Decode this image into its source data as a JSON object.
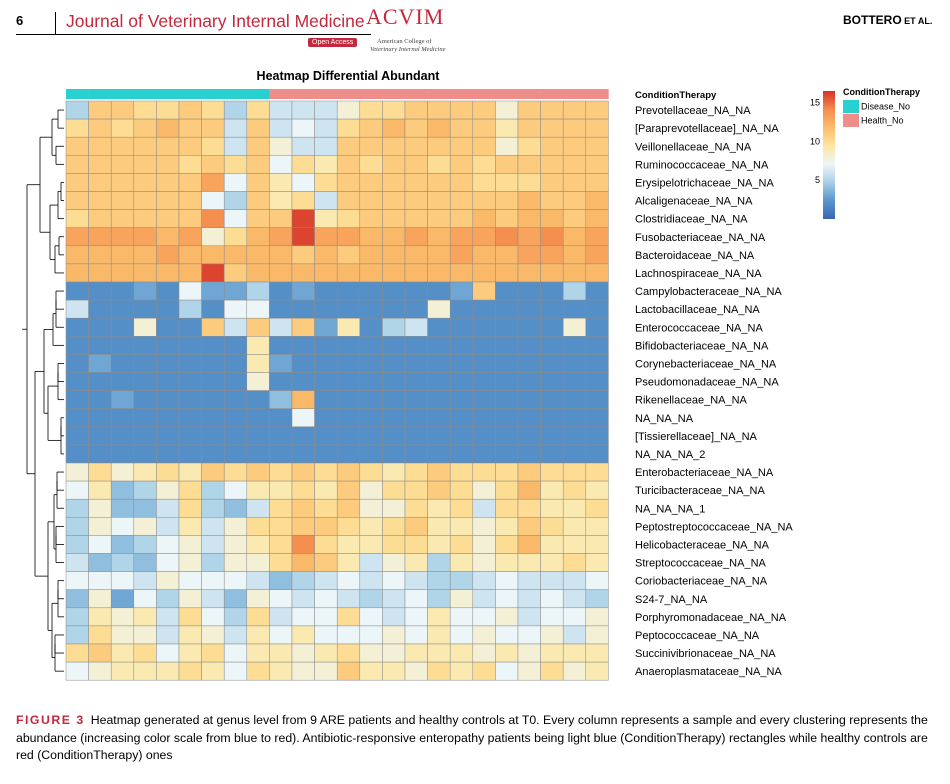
{
  "page": {
    "number": "6",
    "journal": "Journal of Veterinary Internal Medicine",
    "logo": "ACVIM",
    "open_access": "Open Access",
    "college_line1": "American College of",
    "college_line2": "Veterinary Internal Medicine",
    "running_head_author": "BOTTERO",
    "running_head_suffix": " ET AL."
  },
  "chart_data": {
    "type": "heatmap",
    "title": "Heatmap Differential Abundant",
    "annotation_label": "ConditionTherapy",
    "legend": {
      "title": "ConditionTherapy",
      "groups": [
        {
          "label": "Disease_No",
          "color": "#29d0d0"
        },
        {
          "label": "Health_No",
          "color": "#ef8d8a"
        }
      ]
    },
    "colorbar": {
      "ticks": [
        15,
        10,
        5
      ],
      "min": 0,
      "max": 16.5,
      "colors": [
        "#3a65b2",
        "#5a96cc",
        "#a7cfe6",
        "#eef6f9",
        "#fde6a0",
        "#fbbd6c",
        "#f58c4e",
        "#d73027"
      ]
    },
    "columns": [
      "Disease_No",
      "Disease_No",
      "Disease_No",
      "Disease_No",
      "Disease_No",
      "Disease_No",
      "Disease_No",
      "Disease_No",
      "Disease_No",
      "Health_No",
      "Health_No",
      "Health_No",
      "Health_No",
      "Health_No",
      "Health_No",
      "Health_No",
      "Health_No",
      "Health_No",
      "Health_No",
      "Health_No",
      "Health_No",
      "Health_No",
      "Health_No",
      "Health_No"
    ],
    "rows": [
      "Prevotellaceae_NA_NA",
      "[Paraprevotellaceae]_NA_NA",
      "Veillonellaceae_NA_NA",
      "Ruminococcaceae_NA_NA",
      "Erysipelotrichaceae_NA_NA",
      "Alcaligenaceae_NA_NA",
      "Clostridiaceae_NA_NA",
      "Fusobacteriaceae_NA_NA",
      "Bacteroidaceae_NA_NA",
      "Lachnospiraceae_NA_NA",
      "Campylobacteraceae_NA_NA",
      "Lactobacillaceae_NA_NA",
      "Enterococcaceae_NA_NA",
      "Bifidobacteriaceae_NA_NA",
      "Corynebacteriaceae_NA_NA",
      "Pseudomonadaceae_NA_NA",
      "Rikenellaceae_NA_NA",
      "NA_NA_NA",
      "[Tissierellaceae]_NA_NA",
      "NA_NA_NA_2",
      "Enterobacteriaceae_NA_NA",
      "Turicibacteraceae_NA_NA",
      "NA_NA_NA_1",
      "Peptostreptococcaceae_NA_NA",
      "Helicobacteraceae_NA_NA",
      "Streptococcaceae_NA_NA",
      "Coriobacteriaceae_NA_NA",
      "S24-7_NA_NA",
      "Porphyromonadaceae_NA_NA",
      "Peptococcaceae_NA_NA",
      "Succinivibrionaceae_NA_NA",
      "Anaeroplasmataceae_NA_NA"
    ],
    "values": [
      [
        5,
        11,
        11,
        10,
        10,
        11,
        10,
        5,
        10,
        6,
        6,
        6,
        8,
        10,
        10,
        11,
        11,
        11,
        11,
        8,
        11,
        11,
        11,
        11
      ],
      [
        10,
        11,
        10,
        11,
        12,
        11,
        11,
        6,
        11,
        6,
        7,
        6,
        10,
        11,
        12,
        11,
        12,
        11,
        11,
        9,
        11,
        11,
        11,
        11
      ],
      [
        11,
        11,
        11,
        11,
        11,
        11,
        10,
        6,
        11,
        8,
        6,
        6,
        11,
        11,
        11,
        11,
        11,
        11,
        11,
        8,
        10,
        11,
        11,
        11
      ],
      [
        11,
        11,
        11,
        11,
        11,
        10,
        11,
        10,
        11,
        7,
        10,
        9,
        11,
        10,
        11,
        11,
        10,
        11,
        10,
        11,
        11,
        11,
        11,
        11
      ],
      [
        11,
        11,
        11,
        11,
        11,
        11,
        13,
        7,
        11,
        9,
        7,
        10,
        11,
        11,
        11,
        11,
        11,
        11,
        10,
        10,
        10,
        11,
        11,
        11
      ],
      [
        11,
        11,
        11,
        11,
        11,
        11,
        7,
        5,
        11,
        9,
        10,
        6,
        11,
        11,
        11,
        11,
        11,
        11,
        11,
        11,
        12,
        11,
        11,
        12
      ],
      [
        10,
        11,
        11,
        11,
        11,
        11,
        14,
        7,
        11,
        11,
        16,
        9,
        10,
        11,
        11,
        11,
        11,
        11,
        12,
        11,
        12,
        12,
        11,
        12
      ],
      [
        13,
        13,
        13,
        13,
        12,
        13,
        8,
        10,
        12,
        13,
        16,
        13,
        13,
        12,
        12,
        13,
        12,
        13,
        13,
        14,
        13,
        14,
        12,
        13
      ],
      [
        12,
        12,
        12,
        12,
        13,
        12,
        12,
        12,
        12,
        12,
        11,
        12,
        11,
        12,
        12,
        12,
        12,
        13,
        12,
        12,
        13,
        13,
        12,
        13
      ],
      [
        12,
        12,
        12,
        12,
        12,
        12,
        16,
        11,
        12,
        12,
        12,
        12,
        12,
        12,
        12,
        12,
        12,
        12,
        12,
        12,
        12,
        12,
        12,
        12
      ],
      [
        2,
        2,
        2,
        3,
        2,
        7,
        3,
        3,
        5,
        2,
        3,
        2,
        2,
        2,
        2,
        2,
        2,
        3,
        11,
        2,
        2,
        2,
        5,
        2
      ],
      [
        6,
        2,
        2,
        2,
        2,
        5,
        2,
        7,
        7,
        2,
        2,
        2,
        2,
        2,
        2,
        2,
        8,
        2,
        2,
        2,
        2,
        2,
        2,
        2
      ],
      [
        2,
        2,
        2,
        8,
        2,
        2,
        11,
        6,
        11,
        6,
        11,
        3,
        9,
        2,
        5,
        6,
        2,
        2,
        2,
        2,
        2,
        2,
        8,
        2
      ],
      [
        2,
        2,
        2,
        2,
        2,
        2,
        2,
        2,
        9,
        2,
        2,
        2,
        2,
        2,
        2,
        2,
        2,
        2,
        2,
        2,
        2,
        2,
        2,
        2
      ],
      [
        2,
        3,
        2,
        2,
        2,
        2,
        2,
        2,
        9,
        3,
        2,
        2,
        2,
        2,
        2,
        2,
        2,
        2,
        2,
        2,
        2,
        2,
        2,
        2
      ],
      [
        2,
        2,
        2,
        2,
        2,
        2,
        2,
        2,
        8,
        2,
        2,
        2,
        2,
        2,
        2,
        2,
        2,
        2,
        2,
        2,
        2,
        2,
        2,
        2
      ],
      [
        2,
        2,
        3,
        2,
        2,
        2,
        2,
        2,
        2,
        4,
        12,
        2,
        2,
        2,
        2,
        2,
        2,
        2,
        2,
        2,
        2,
        2,
        2,
        2
      ],
      [
        2,
        2,
        2,
        2,
        2,
        2,
        2,
        2,
        2,
        2,
        7,
        2,
        2,
        2,
        2,
        2,
        2,
        2,
        2,
        2,
        2,
        2,
        2,
        2
      ],
      [
        2,
        2,
        2,
        2,
        2,
        2,
        2,
        2,
        2,
        2,
        2,
        2,
        2,
        2,
        2,
        2,
        2,
        2,
        2,
        2,
        2,
        2,
        2,
        2
      ],
      [
        2,
        2,
        2,
        2,
        2,
        2,
        2,
        2,
        2,
        2,
        2,
        2,
        2,
        2,
        2,
        2,
        2,
        2,
        2,
        2,
        2,
        2,
        2,
        2
      ],
      [
        8,
        10,
        8,
        9,
        10,
        9,
        11,
        10,
        11,
        10,
        11,
        10,
        11,
        10,
        9,
        10,
        11,
        10,
        10,
        10,
        11,
        10,
        10,
        10
      ],
      [
        7,
        9,
        4,
        5,
        8,
        10,
        5,
        7,
        9,
        9,
        10,
        9,
        11,
        8,
        10,
        10,
        11,
        10,
        8,
        10,
        12,
        9,
        10,
        9
      ],
      [
        5,
        8,
        4,
        4,
        6,
        10,
        5,
        4,
        6,
        10,
        11,
        10,
        11,
        8,
        8,
        10,
        9,
        10,
        6,
        10,
        10,
        9,
        9,
        10
      ],
      [
        5,
        8,
        7,
        8,
        6,
        9,
        6,
        8,
        10,
        10,
        11,
        11,
        10,
        9,
        10,
        11,
        9,
        9,
        8,
        9,
        11,
        10,
        9,
        9
      ],
      [
        5,
        7,
        4,
        5,
        7,
        8,
        6,
        8,
        9,
        10,
        14,
        10,
        9,
        9,
        10,
        10,
        9,
        10,
        8,
        10,
        12,
        9,
        9,
        9
      ],
      [
        6,
        4,
        5,
        4,
        7,
        8,
        5,
        8,
        8,
        10,
        12,
        11,
        9,
        6,
        8,
        9,
        5,
        9,
        8,
        9,
        9,
        9,
        10,
        9
      ],
      [
        7,
        7,
        7,
        6,
        8,
        7,
        7,
        7,
        6,
        4,
        5,
        6,
        7,
        6,
        7,
        6,
        5,
        5,
        6,
        7,
        6,
        6,
        6,
        7
      ],
      [
        4,
        8,
        3,
        7,
        5,
        8,
        6,
        4,
        8,
        7,
        6,
        7,
        6,
        5,
        6,
        7,
        5,
        8,
        6,
        7,
        6,
        7,
        6,
        5
      ],
      [
        5,
        9,
        8,
        9,
        6,
        10,
        7,
        5,
        10,
        6,
        7,
        7,
        10,
        7,
        6,
        7,
        9,
        7,
        7,
        8,
        6,
        7,
        7,
        8
      ],
      [
        5,
        10,
        8,
        8,
        6,
        9,
        8,
        6,
        9,
        7,
        9,
        7,
        7,
        7,
        8,
        7,
        9,
        7,
        8,
        7,
        7,
        8,
        6,
        8
      ],
      [
        10,
        11,
        9,
        10,
        7,
        9,
        10,
        7,
        9,
        9,
        8,
        9,
        10,
        8,
        8,
        9,
        9,
        9,
        8,
        9,
        8,
        9,
        9,
        9
      ],
      [
        7,
        8,
        9,
        9,
        9,
        10,
        9,
        7,
        10,
        9,
        8,
        8,
        11,
        9,
        9,
        8,
        10,
        9,
        10,
        7,
        8,
        10,
        8,
        9
      ]
    ]
  },
  "caption": {
    "label": "FIGURE 3",
    "text": "Heatmap generated at genus level from 9 ARE patients and healthy controls at T0. Every column represents a sample and every clustering represents the abundance (increasing color scale from blue to red). Antibiotic-responsive enteropathy patients being light blue (ConditionTherapy) rectangles while healthy controls are red (ConditionTherapy) ones"
  }
}
